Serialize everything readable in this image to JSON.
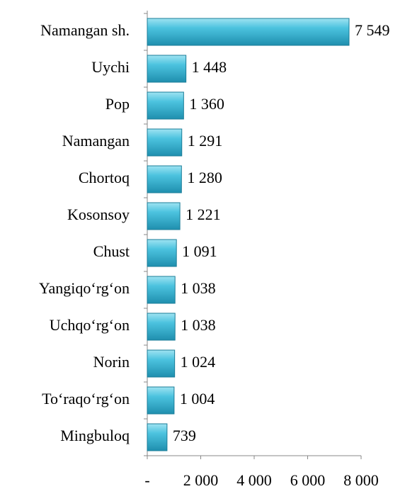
{
  "chart_data": {
    "type": "bar",
    "orientation": "horizontal",
    "categories": [
      "Namangan sh.",
      "Uychi",
      "Pop",
      "Namangan",
      "Chortoq",
      "Kosonsoy",
      "Chust",
      "Yangiqo‘rg‘on",
      "Uchqo‘rg‘on",
      "Norin",
      "To‘raqo‘rg‘on",
      "Mingbuloq"
    ],
    "values": [
      7549,
      1448,
      1360,
      1291,
      1280,
      1221,
      1091,
      1038,
      1038,
      1024,
      1004,
      739
    ],
    "value_labels": [
      "7 549",
      "1 448",
      "1 360",
      "1 291",
      "1 280",
      "1 221",
      "1 091",
      "1 038",
      "1 038",
      "1 024",
      "1 004",
      "739"
    ],
    "color": "#3cb6d4",
    "xlim": [
      0,
      8000
    ],
    "xticks": [
      {
        "value": 0,
        "label": "-"
      },
      {
        "value": 2000,
        "label": "2 000"
      },
      {
        "value": 4000,
        "label": "4 000"
      },
      {
        "value": 6000,
        "label": "6 000"
      },
      {
        "value": 8000,
        "label": "8 000"
      }
    ]
  }
}
